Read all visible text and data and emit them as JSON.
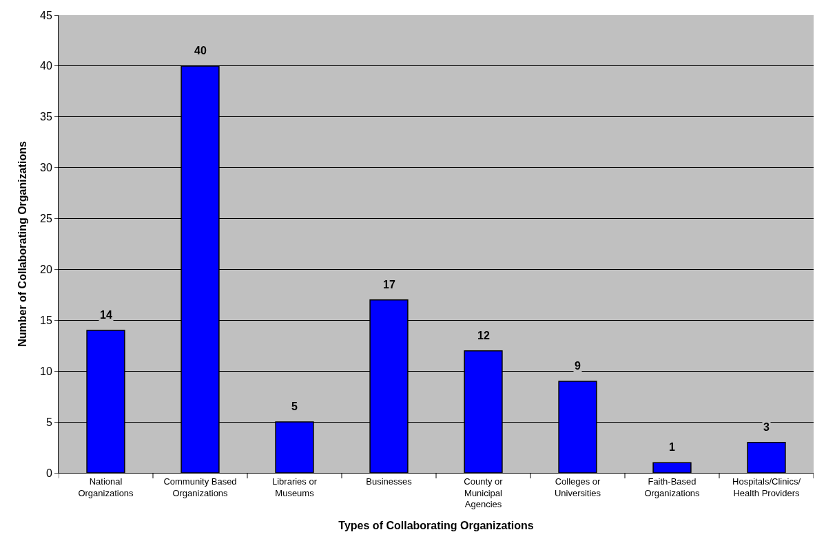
{
  "chart_data": {
    "type": "bar",
    "xlabel": "Types of Collaborating Organizations",
    "ylabel": "Number of Collaborating Organizations",
    "categories": [
      "National\nOrganizations",
      "Community Based\nOrganizations",
      "Libraries or\nMuseums",
      "Businesses",
      "County or\nMunicipal\nAgencies",
      "Colleges or\nUniversities",
      "Faith-Based\nOrganizations",
      "Hospitals/Clinics/\nHealth Providers"
    ],
    "values": [
      14,
      40,
      5,
      17,
      12,
      9,
      1,
      3
    ],
    "color": "#0000ff",
    "ylim": [
      0,
      45
    ],
    "yticks": [
      0,
      5,
      10,
      15,
      20,
      25,
      30,
      35,
      40,
      45
    ],
    "grid": "y",
    "data_labels": true,
    "legend": false
  }
}
